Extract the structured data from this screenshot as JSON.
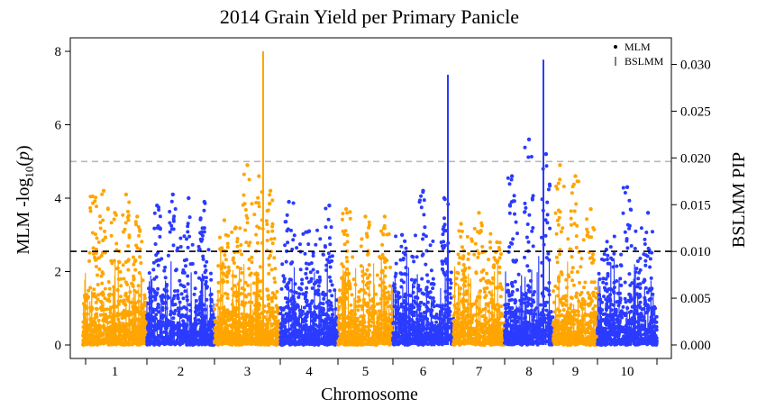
{
  "chart_data": {
    "type": "scatter",
    "title": "2014 Grain Yield per Primary Panicle",
    "xlabel": "Chromosome",
    "ylabel_left": {
      "base": "MLM  -log",
      "sub": "10",
      "tail": "(",
      "var": "p",
      "end": ")"
    },
    "ylabel_right": "BSLMM  PIP",
    "y_left_ticks": [
      "0",
      "2",
      "4",
      "6",
      "8"
    ],
    "y_left_lim": [
      0,
      8
    ],
    "y_right_ticks": [
      "0.000",
      "0.005",
      "0.010",
      "0.015",
      "0.020",
      "0.025",
      "0.030"
    ],
    "y_right_lim": [
      0,
      0.0314
    ],
    "chromosomes": [
      "1",
      "2",
      "3",
      "4",
      "5",
      "6",
      "7",
      "8",
      "9",
      "10"
    ],
    "chromosome_colors": [
      "#FFA500",
      "#2B3BFF",
      "#FFA500",
      "#2B3BFF",
      "#FFA500",
      "#2B3BFF",
      "#FFA500",
      "#2B3BFF",
      "#FFA500",
      "#2B3BFF"
    ],
    "thresholds": [
      {
        "axis": "left",
        "value": 5.0,
        "color": "#b8b8b8",
        "dash": "dashed"
      },
      {
        "axis": "left",
        "value": 2.55,
        "color": "#000000",
        "dash": "dashed"
      }
    ],
    "legend": {
      "placement": "top-right",
      "entries": [
        {
          "label": "MLM",
          "symbol": "dot"
        },
        {
          "label": "BSLMM",
          "symbol": "bar"
        }
      ]
    },
    "mlm_peaks": [
      {
        "chromosome": "1",
        "values": [
          4.05,
          4.2,
          3.6,
          4.1,
          3.5
        ]
      },
      {
        "chromosome": "2",
        "values": [
          3.8,
          4.1,
          4.0,
          3.9
        ]
      },
      {
        "chromosome": "3",
        "values": [
          3.4,
          3.2,
          4.9,
          4.6,
          4.2
        ]
      },
      {
        "chromosome": "4",
        "values": [
          3.9,
          3.1,
          3.8
        ]
      },
      {
        "chromosome": "5",
        "values": [
          3.7,
          3.5,
          3.5
        ]
      },
      {
        "chromosome": "6",
        "values": [
          3.0,
          4.2,
          4.0
        ]
      },
      {
        "chromosome": "7",
        "values": [
          3.3,
          3.6,
          2.8
        ]
      },
      {
        "chromosome": "8",
        "values": [
          4.6,
          5.6,
          5.2
        ]
      },
      {
        "chromosome": "9",
        "values": [
          4.9,
          4.6,
          3.7
        ]
      },
      {
        "chromosome": "10",
        "values": [
          2.6,
          4.3,
          3.6
        ]
      }
    ],
    "bslmm_tall_spikes": [
      {
        "chromosome": "3",
        "value": 0.0314
      },
      {
        "chromosome": "6",
        "value": 0.0289
      },
      {
        "chromosome": "8",
        "value": 0.0305
      }
    ]
  }
}
